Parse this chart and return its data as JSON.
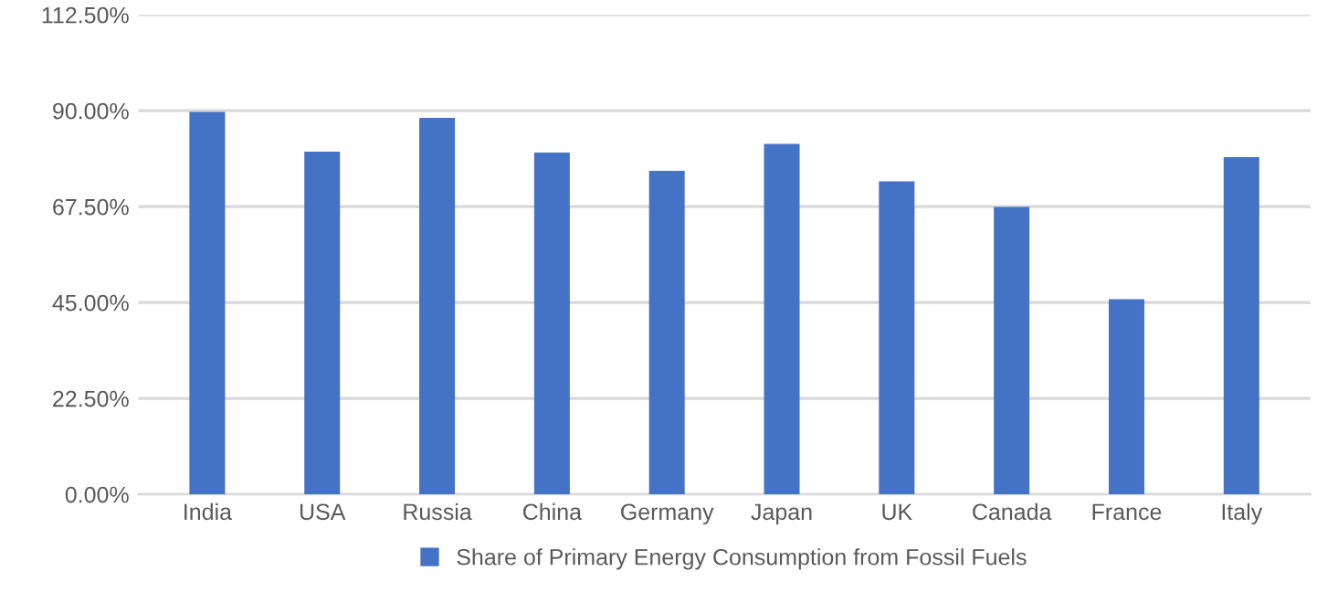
{
  "chart_data": {
    "type": "bar",
    "categories": [
      "India",
      "USA",
      "Russia",
      "China",
      "Germany",
      "Japan",
      "UK",
      "Canada",
      "France",
      "Italy"
    ],
    "series": [
      {
        "name": "Share of Primary Energy Consumption from Fossil Fuels",
        "color": "#4472c4",
        "values": [
          89.7,
          80.4,
          88.3,
          80.2,
          75.9,
          82.2,
          73.4,
          67.4,
          45.8,
          79.1
        ]
      }
    ],
    "ylim": [
      0,
      112.5
    ],
    "yticks": [
      {
        "value": 0,
        "label": "0.00%"
      },
      {
        "value": 22.5,
        "label": "22.50%"
      },
      {
        "value": 45,
        "label": "45.00%"
      },
      {
        "value": 67.5,
        "label": "67.50%"
      },
      {
        "value": 90,
        "label": "90.00%"
      },
      {
        "value": 112.5,
        "label": "112.50%"
      }
    ],
    "grid": "y",
    "legend": "bottom"
  }
}
